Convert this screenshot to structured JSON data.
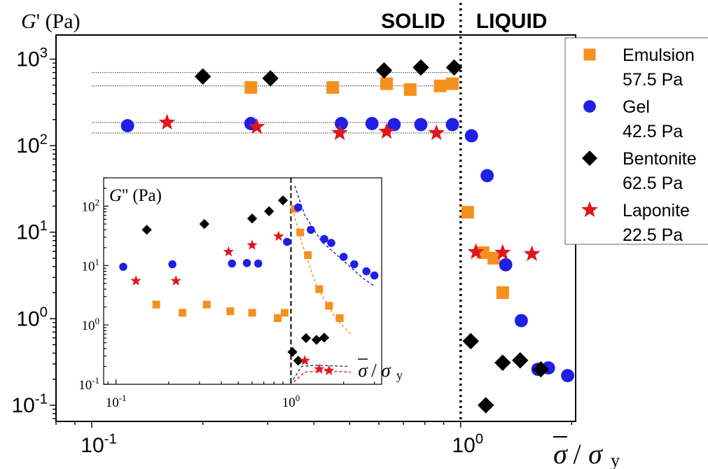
{
  "chart_data": [
    {
      "type": "scatter",
      "ylabel_symbol": "G",
      "ylabel_prime": "'",
      "ylabel_unit": "(Pa)",
      "xlabel_sym": "σ",
      "xlabel_sub": "y",
      "region_left": "SOLID",
      "region_right": "LIQUID",
      "xscale": "log",
      "yscale": "log",
      "xlim": [
        0.08,
        2.05
      ],
      "ylim": [
        0.065,
        1900
      ],
      "x_ticks": [
        {
          "base": "10",
          "exp": "-1",
          "value": 0.1
        },
        {
          "base": "10",
          "exp": "0",
          "value": 1
        }
      ],
      "y_ticks": [
        {
          "base": "10",
          "exp": "3",
          "value": 1000
        },
        {
          "base": "10",
          "exp": "2",
          "value": 100
        },
        {
          "base": "10",
          "exp": "1",
          "value": 10
        },
        {
          "base": "10",
          "exp": "0",
          "value": 1
        },
        {
          "base": "10",
          "exp": "-1",
          "value": 0.1
        }
      ],
      "divider_x": 1.0,
      "plateaus": [
        700,
        490,
        185,
        140
      ],
      "legend_position": "right",
      "series": [
        {
          "name": "Emulsion",
          "yield": "57.5 Pa",
          "marker": "square",
          "color": "#f5901e",
          "points": [
            [
              0.27,
              470
            ],
            [
              0.45,
              470
            ],
            [
              0.63,
              520
            ],
            [
              0.73,
              445
            ],
            [
              0.88,
              490
            ],
            [
              0.95,
              520
            ],
            [
              1.045,
              17
            ],
            [
              1.15,
              5.8
            ],
            [
              1.23,
              5.0
            ],
            [
              1.3,
              2.0
            ]
          ]
        },
        {
          "name": "Gel",
          "yield": "42.5 Pa",
          "marker": "circle",
          "color": "#1f1fe6",
          "points": [
            [
              0.125,
              170
            ],
            [
              0.27,
              180
            ],
            [
              0.475,
              180
            ],
            [
              0.575,
              180
            ],
            [
              0.66,
              175
            ],
            [
              0.78,
              175
            ],
            [
              0.95,
              175
            ],
            [
              1.07,
              130
            ],
            [
              1.18,
              45
            ],
            [
              1.325,
              4.2
            ],
            [
              1.46,
              0.95
            ],
            [
              1.62,
              0.26
            ],
            [
              1.73,
              0.27
            ],
            [
              1.95,
              0.22
            ]
          ]
        },
        {
          "name": "Bentonite",
          "yield": "62.5 Pa",
          "marker": "diamond",
          "color": "#000000",
          "points": [
            [
              0.2,
              630
            ],
            [
              0.305,
              600
            ],
            [
              0.62,
              740
            ],
            [
              0.78,
              800
            ],
            [
              0.96,
              800
            ],
            [
              1.065,
              0.55
            ],
            [
              1.17,
              0.1
            ],
            [
              1.3,
              0.31
            ],
            [
              1.45,
              0.33
            ],
            [
              1.65,
              0.26
            ]
          ]
        },
        {
          "name": "Laponite",
          "yield": "22.5 Pa",
          "marker": "star",
          "color": "#e0161e",
          "points": [
            [
              0.16,
              185
            ],
            [
              0.28,
              165
            ],
            [
              0.47,
              140
            ],
            [
              0.63,
              145
            ],
            [
              0.86,
              140
            ],
            [
              1.1,
              5.9
            ],
            [
              1.3,
              5.8
            ],
            [
              1.56,
              5.6
            ]
          ]
        }
      ]
    },
    {
      "type": "scatter",
      "ylabel_symbol": "G",
      "ylabel_prime": "''",
      "ylabel_unit": "(Pa)",
      "xlabel_sym": "σ",
      "xlabel_sub": "y",
      "xscale": "log",
      "yscale": "log",
      "xlim": [
        0.085,
        3.3
      ],
      "ylim": [
        0.1,
        300
      ],
      "x_ticks": [
        {
          "base": "10",
          "exp": "-1",
          "value": 0.1
        },
        {
          "base": "10",
          "exp": "0",
          "value": 1
        }
      ],
      "y_ticks": [
        {
          "base": "10",
          "exp": "2",
          "value": 100
        },
        {
          "base": "10",
          "exp": "1",
          "value": 10
        },
        {
          "base": "10",
          "exp": "0",
          "value": 1
        },
        {
          "base": "10",
          "exp": "-1",
          "value": 0.1
        }
      ],
      "divider_x": 1.0,
      "fits": [
        {
          "color": "#1f1fe6",
          "points": [
            [
              1.05,
              220
            ],
            [
              1.2,
              70
            ],
            [
              1.5,
              25
            ],
            [
              2,
              12
            ],
            [
              2.6,
              6
            ],
            [
              3.0,
              4.5
            ]
          ]
        },
        {
          "color": "#f5901e",
          "points": [
            [
              1.02,
              90
            ],
            [
              1.15,
              25
            ],
            [
              1.4,
              4.5
            ],
            [
              1.8,
              1.3
            ],
            [
              2.2,
              0.7
            ]
          ]
        },
        {
          "color": "#333333",
          "points": [
            [
              1.03,
              0.12
            ],
            [
              1.15,
              0.2
            ],
            [
              1.4,
              0.21
            ],
            [
              2.1,
              0.2
            ]
          ]
        },
        {
          "color": "#e0161e",
          "points": [
            [
              1.04,
              0.11
            ],
            [
              1.2,
              0.16
            ],
            [
              1.5,
              0.17
            ],
            [
              2.2,
              0.16
            ]
          ]
        }
      ],
      "series": [
        {
          "name": "Emulsion",
          "marker": "square",
          "color": "#f5901e",
          "points": [
            [
              0.17,
              2.2
            ],
            [
              0.24,
              1.6
            ],
            [
              0.33,
              2.2
            ],
            [
              0.45,
              1.7
            ],
            [
              0.6,
              1.6
            ],
            [
              0.84,
              1.3
            ],
            [
              0.92,
              1.6
            ],
            [
              1.05,
              90
            ],
            [
              1.13,
              36
            ],
            [
              1.25,
              15
            ],
            [
              1.45,
              4
            ],
            [
              1.65,
              2.1
            ],
            [
              1.9,
              1.3
            ]
          ]
        },
        {
          "name": "Gel",
          "marker": "circle",
          "color": "#1f1fe6",
          "points": [
            [
              0.11,
              9.5
            ],
            [
              0.21,
              10.5
            ],
            [
              0.46,
              10.8
            ],
            [
              0.56,
              11
            ],
            [
              0.65,
              10.8
            ],
            [
              0.95,
              25
            ],
            [
              1.1,
              95
            ],
            [
              1.3,
              40
            ],
            [
              1.55,
              28
            ],
            [
              1.7,
              24
            ],
            [
              2.0,
              14
            ],
            [
              2.3,
              10.5
            ],
            [
              2.7,
              8
            ],
            [
              3.0,
              6.8
            ]
          ]
        },
        {
          "name": "Bentonite",
          "marker": "diamond",
          "color": "#000000",
          "points": [
            [
              0.15,
              40
            ],
            [
              0.32,
              50
            ],
            [
              0.6,
              62
            ],
            [
              0.75,
              82
            ],
            [
              0.9,
              125
            ],
            [
              1.02,
              0.35
            ],
            [
              1.1,
              0.25
            ],
            [
              1.22,
              0.6
            ],
            [
              1.4,
              0.56
            ],
            [
              1.55,
              0.61
            ]
          ]
        },
        {
          "name": "Laponite",
          "marker": "star",
          "color": "#e0161e",
          "points": [
            [
              0.13,
              5.5
            ],
            [
              0.22,
              5.5
            ],
            [
              0.44,
              17
            ],
            [
              0.6,
              22
            ],
            [
              0.85,
              31
            ],
            [
              1.2,
              0.25
            ],
            [
              1.45,
              0.18
            ],
            [
              1.65,
              0.17
            ]
          ]
        }
      ]
    }
  ]
}
